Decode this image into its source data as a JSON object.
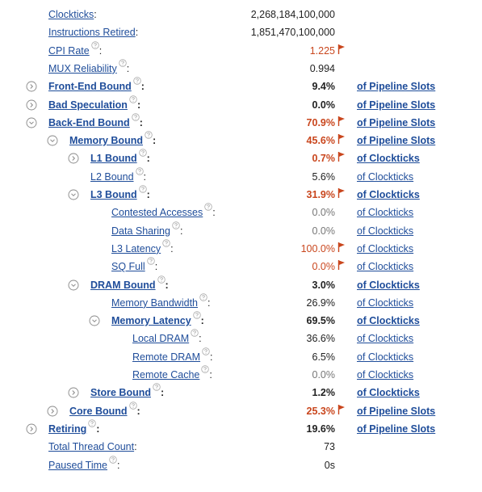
{
  "rows": [
    {
      "label": "Clockticks",
      "suffix": ":",
      "value": "2,268,184,100,000",
      "level": 0,
      "help": false,
      "bold": false,
      "flag": false,
      "expander": null
    },
    {
      "label": "Instructions Retired",
      "suffix": ":",
      "value": "1,851,470,100,000",
      "level": 0,
      "help": false,
      "bold": false,
      "flag": false,
      "expander": null
    },
    {
      "label": "CPI Rate",
      "suffix": ":",
      "value": "1.225",
      "level": 0,
      "help": true,
      "bold": false,
      "flag": true,
      "expander": null
    },
    {
      "label": "MUX Reliability",
      "suffix": ":",
      "value": "0.994",
      "level": 0,
      "help": true,
      "bold": false,
      "flag": false,
      "expander": null
    },
    {
      "label": "Front-End Bound",
      "suffix": ":",
      "value": "9.4%",
      "unit": "of Pipeline Slots",
      "level": 0,
      "help": true,
      "bold": true,
      "flag": false,
      "expander": "collapsed"
    },
    {
      "label": "Bad Speculation",
      "suffix": ":",
      "value": "0.0%",
      "unit": "of Pipeline Slots",
      "level": 0,
      "help": true,
      "bold": true,
      "flag": false,
      "expander": "collapsed"
    },
    {
      "label": "Back-End Bound",
      "suffix": ":",
      "value": "70.9%",
      "unit": "of Pipeline Slots",
      "level": 0,
      "help": true,
      "bold": true,
      "flag": true,
      "expander": "expanded"
    },
    {
      "label": "Memory Bound",
      "suffix": ":",
      "value": "45.6%",
      "unit": "of Pipeline Slots",
      "level": 1,
      "help": true,
      "bold": true,
      "flag": true,
      "expander": "expanded"
    },
    {
      "label": "L1 Bound",
      "suffix": ":",
      "value": "0.7%",
      "unit": "of Clockticks",
      "level": 2,
      "help": true,
      "bold": true,
      "flag": true,
      "expander": "collapsed"
    },
    {
      "label": "L2 Bound",
      "suffix": ":",
      "value": "5.6%",
      "unit": "of Clockticks",
      "level": 2,
      "help": true,
      "bold": false,
      "flag": false,
      "expander": null
    },
    {
      "label": "L3 Bound",
      "suffix": ":",
      "value": "31.9%",
      "unit": "of Clockticks",
      "level": 2,
      "help": true,
      "bold": true,
      "flag": true,
      "expander": "expanded"
    },
    {
      "label": "Contested Accesses",
      "suffix": ":",
      "value": "0.0%",
      "unit": "of Clockticks",
      "level": 3,
      "help": true,
      "bold": false,
      "flag": false,
      "expander": null,
      "muted": true
    },
    {
      "label": "Data Sharing",
      "suffix": ":",
      "value": "0.0%",
      "unit": "of Clockticks",
      "level": 3,
      "help": true,
      "bold": false,
      "flag": false,
      "expander": null,
      "muted": true
    },
    {
      "label": "L3 Latency",
      "suffix": ":",
      "value": "100.0%",
      "unit": "of Clockticks",
      "level": 3,
      "help": true,
      "bold": false,
      "flag": true,
      "expander": null
    },
    {
      "label": "SQ Full",
      "suffix": ":",
      "value": "0.0%",
      "unit": "of Clockticks",
      "level": 3,
      "help": true,
      "bold": false,
      "flag": true,
      "expander": null
    },
    {
      "label": "DRAM Bound",
      "suffix": ":",
      "value": "3.0%",
      "unit": "of Clockticks",
      "level": 2,
      "help": true,
      "bold": true,
      "flag": false,
      "expander": "expanded"
    },
    {
      "label": "Memory Bandwidth",
      "suffix": ":",
      "value": "26.9%",
      "unit": "of Clockticks",
      "level": 3,
      "help": true,
      "bold": false,
      "flag": false,
      "expander": null
    },
    {
      "label": "Memory Latency",
      "suffix": ":",
      "value": "69.5%",
      "unit": "of Clockticks",
      "level": 3,
      "help": true,
      "bold": true,
      "flag": false,
      "expander": "expanded"
    },
    {
      "label": "Local DRAM",
      "suffix": ":",
      "value": "36.6%",
      "unit": "of Clockticks",
      "level": 4,
      "help": true,
      "bold": false,
      "flag": false,
      "expander": null
    },
    {
      "label": "Remote DRAM",
      "suffix": ":",
      "value": "6.5%",
      "unit": "of Clockticks",
      "level": 4,
      "help": true,
      "bold": false,
      "flag": false,
      "expander": null
    },
    {
      "label": "Remote Cache",
      "suffix": ":",
      "value": "0.0%",
      "unit": "of Clockticks",
      "level": 4,
      "help": true,
      "bold": false,
      "flag": false,
      "expander": null,
      "muted": true
    },
    {
      "label": "Store Bound",
      "suffix": ":",
      "value": "1.2%",
      "unit": "of Clockticks",
      "level": 2,
      "help": true,
      "bold": true,
      "flag": false,
      "expander": "collapsed"
    },
    {
      "label": "Core Bound",
      "suffix": ":",
      "value": "25.3%",
      "unit": "of Pipeline Slots",
      "level": 1,
      "help": true,
      "bold": true,
      "flag": true,
      "expander": "collapsed"
    },
    {
      "label": "Retiring",
      "suffix": ":",
      "value": "19.6%",
      "unit": "of Pipeline Slots",
      "level": 0,
      "help": true,
      "bold": true,
      "flag": false,
      "expander": "collapsed"
    },
    {
      "label": "Total Thread Count",
      "suffix": ":",
      "value": "73",
      "level": 0,
      "help": false,
      "bold": false,
      "flag": false,
      "expander": null
    },
    {
      "label": "Paused Time",
      "suffix": ":",
      "value": "0s",
      "level": 0,
      "help": true,
      "bold": false,
      "flag": false,
      "expander": null
    }
  ]
}
